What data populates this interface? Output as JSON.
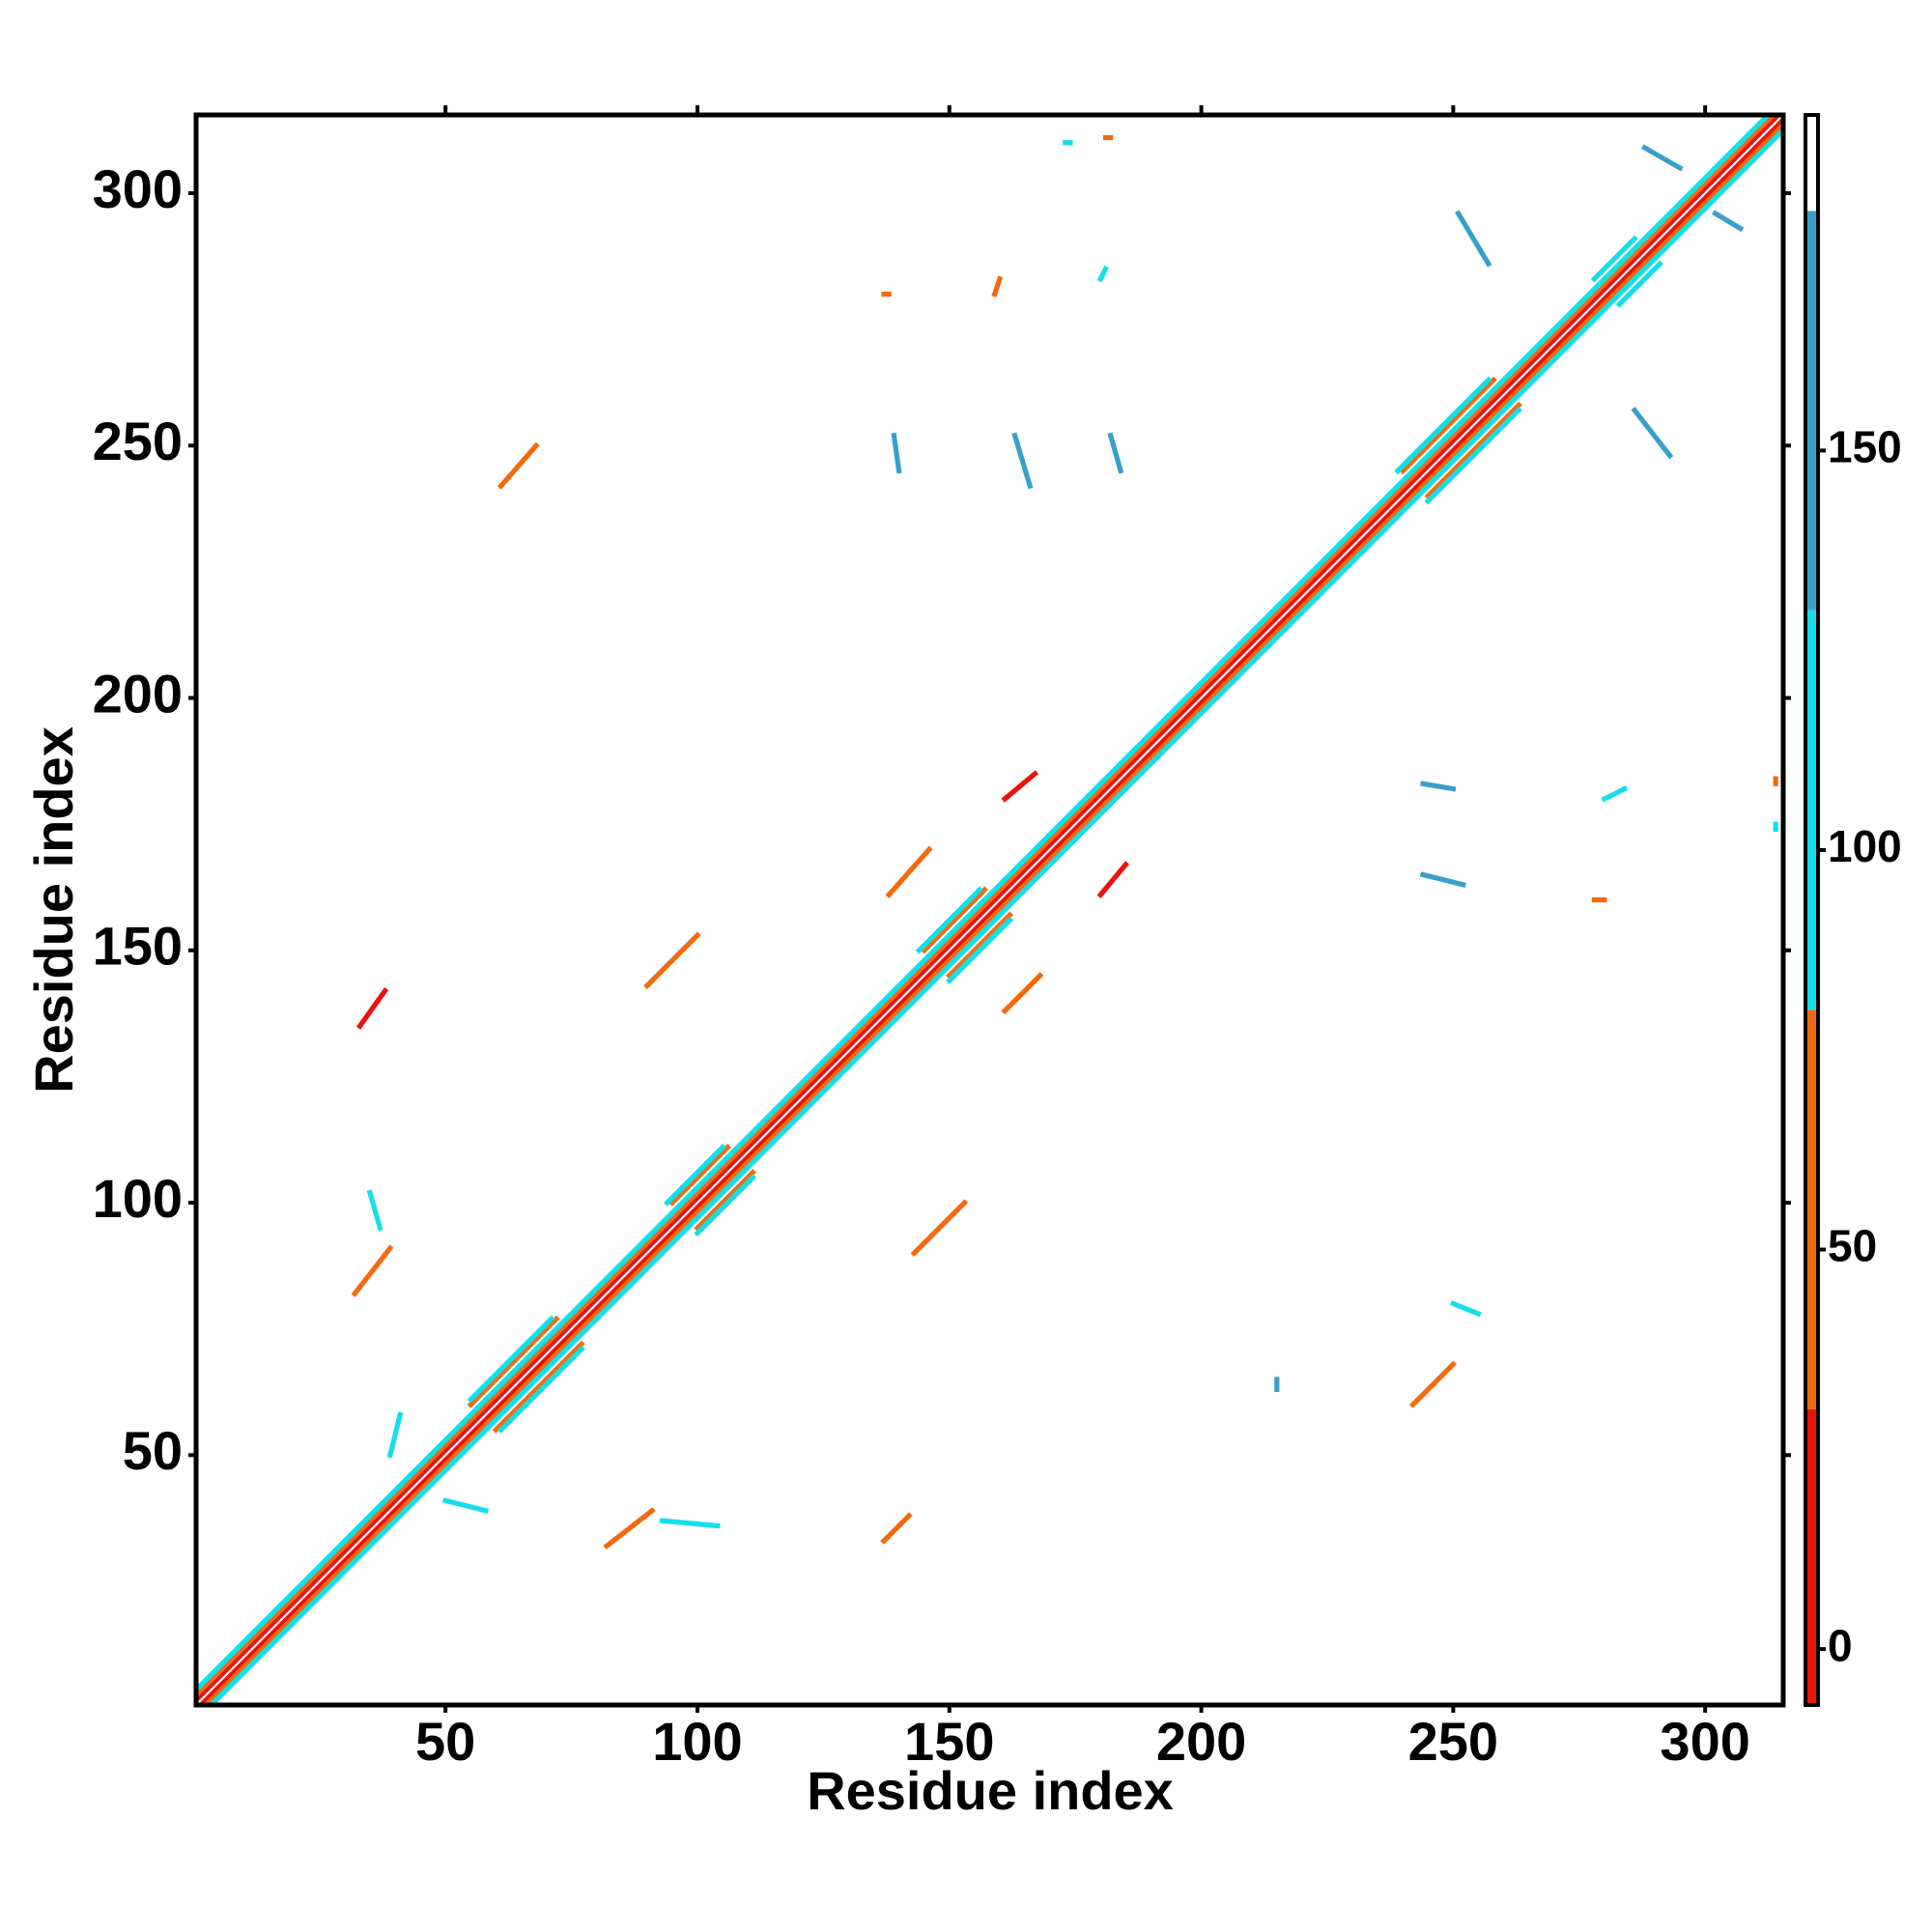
{
  "chart_data": {
    "type": "contact-map",
    "xlabel": "Residue index",
    "ylabel": "Residue index",
    "xlim": [
      0.5,
      315.5
    ],
    "ylim": [
      0.5,
      315.5
    ],
    "xticks": [
      50,
      100,
      150,
      200,
      250,
      300
    ],
    "yticks": [
      50,
      100,
      150,
      200,
      250,
      300
    ],
    "colorbar": {
      "lim": [
        -7,
        192
      ],
      "ticks": [
        0,
        50,
        100,
        150
      ],
      "bounds": [
        -7,
        30,
        80,
        130,
        180,
        192
      ],
      "colors": [
        "#e8140c",
        "#f26a10",
        "#14dfe8",
        "#3a9fc8",
        "#ffffff"
      ]
    },
    "strips": [
      [
        1,
        2,
        314,
        315,
        5
      ],
      [
        2,
        1,
        315,
        314,
        5
      ],
      [
        1,
        3,
        313,
        315,
        55
      ],
      [
        3,
        1,
        315,
        313,
        55
      ],
      [
        1,
        4,
        312,
        315,
        100
      ],
      [
        4,
        1,
        315,
        312,
        100
      ],
      [
        55,
        60,
        72,
        77,
        60
      ],
      [
        60,
        55,
        77,
        72,
        60
      ],
      [
        55,
        61,
        71,
        77,
        110
      ],
      [
        61,
        55,
        77,
        71,
        110
      ],
      [
        95,
        100,
        106,
        111,
        60
      ],
      [
        100,
        95,
        111,
        106,
        60
      ],
      [
        94,
        100,
        105,
        111,
        110
      ],
      [
        100,
        94,
        111,
        105,
        110
      ],
      [
        145,
        150,
        157,
        162,
        60
      ],
      [
        150,
        145,
        162,
        157,
        60
      ],
      [
        144,
        150,
        156,
        162,
        110
      ],
      [
        150,
        144,
        162,
        156,
        110
      ],
      [
        240,
        245,
        258,
        263,
        60
      ],
      [
        245,
        240,
        263,
        258,
        60
      ],
      [
        239,
        245,
        257,
        263,
        110
      ],
      [
        245,
        239,
        263,
        257,
        110
      ],
      [
        278,
        283,
        286,
        291,
        110
      ],
      [
        283,
        278,
        291,
        286,
        110
      ],
      [
        32,
        82,
        39,
        91,
        40
      ],
      [
        82,
        32,
        91,
        39,
        40
      ],
      [
        33,
        135,
        38,
        142,
        20
      ],
      [
        137,
        33,
        142,
        38,
        40
      ],
      [
        61,
        242,
        68,
        250,
        45
      ],
      [
        242,
        60,
        250,
        68,
        45
      ],
      [
        138,
        161,
        146,
        170,
        40
      ],
      [
        161,
        138,
        168,
        145,
        30
      ],
      [
        161,
        180,
        167,
        185,
        15
      ],
      [
        180,
        161,
        185,
        167,
        15
      ],
      [
        90,
        143,
        100,
        153,
        60
      ],
      [
        143,
        90,
        153,
        100,
        60
      ],
      [
        288,
        309,
        295,
        305,
        150
      ],
      [
        302,
        296,
        307,
        293,
        150
      ],
      [
        50,
        41,
        58,
        39,
        100
      ],
      [
        39,
        50,
        41,
        58,
        100
      ],
      [
        93,
        37,
        104,
        36,
        100
      ],
      [
        35,
        102,
        37,
        95,
        110
      ],
      [
        244,
        183,
        250,
        182,
        130
      ],
      [
        244,
        165,
        252,
        163,
        130
      ],
      [
        251,
        296,
        257,
        286,
        140
      ],
      [
        286,
        257,
        293,
        248,
        140
      ],
      [
        139,
        252,
        140,
        245,
        130
      ],
      [
        163,
        252,
        166,
        242,
        130
      ],
      [
        182,
        252,
        184,
        245,
        130
      ],
      [
        173,
        310,
        174,
        310,
        110
      ],
      [
        181,
        311,
        182,
        311,
        60
      ],
      [
        314,
        175,
        314,
        174,
        110
      ],
      [
        314,
        183,
        314,
        184,
        60
      ],
      [
        250,
        80,
        255,
        78,
        100
      ],
      [
        215,
        63,
        215,
        65,
        130
      ],
      [
        137,
        280,
        138,
        280,
        60
      ],
      [
        159,
        280,
        160,
        283,
        60
      ],
      [
        180,
        283,
        181,
        285,
        100
      ],
      [
        280,
        180,
        284,
        182,
        100
      ],
      [
        278,
        160,
        280,
        160,
        60
      ]
    ]
  }
}
